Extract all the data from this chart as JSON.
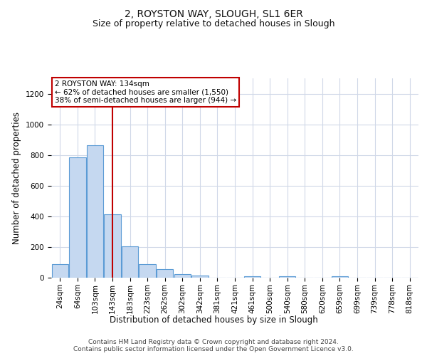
{
  "title": "2, ROYSTON WAY, SLOUGH, SL1 6ER",
  "subtitle": "Size of property relative to detached houses in Slough",
  "xlabel": "Distribution of detached houses by size in Slough",
  "ylabel": "Number of detached properties",
  "categories": [
    "24sqm",
    "64sqm",
    "103sqm",
    "143sqm",
    "183sqm",
    "223sqm",
    "262sqm",
    "302sqm",
    "342sqm",
    "381sqm",
    "421sqm",
    "461sqm",
    "500sqm",
    "540sqm",
    "580sqm",
    "620sqm",
    "659sqm",
    "699sqm",
    "739sqm",
    "778sqm",
    "818sqm"
  ],
  "values": [
    90,
    785,
    865,
    415,
    205,
    90,
    55,
    25,
    15,
    0,
    0,
    10,
    0,
    10,
    0,
    0,
    10,
    0,
    0,
    0,
    0
  ],
  "bar_color": "#c5d8f0",
  "bar_edge_color": "#5b9bd5",
  "vline_x": 3,
  "vline_color": "#c00000",
  "annotation_text": "2 ROYSTON WAY: 134sqm\n← 62% of detached houses are smaller (1,550)\n38% of semi-detached houses are larger (944) →",
  "annotation_box_color": "#ffffff",
  "annotation_box_edge_color": "#c00000",
  "ylim": [
    0,
    1300
  ],
  "yticks": [
    0,
    200,
    400,
    600,
    800,
    1000,
    1200
  ],
  "footer_text": "Contains HM Land Registry data © Crown copyright and database right 2024.\nContains public sector information licensed under the Open Government Licence v3.0.",
  "background_color": "#ffffff",
  "grid_color": "#d0d8e8",
  "title_fontsize": 10,
  "subtitle_fontsize": 9,
  "axis_label_fontsize": 8.5,
  "tick_fontsize": 7.5,
  "footer_fontsize": 6.5,
  "annotation_fontsize": 7.5
}
